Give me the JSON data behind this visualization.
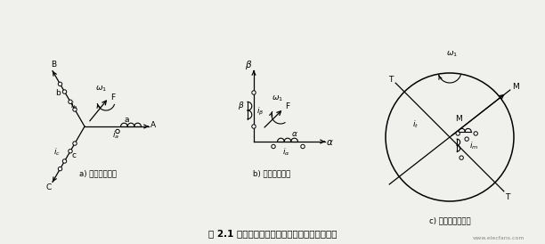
{
  "bg_color": "#f0f0ec",
  "title": "图 2.1 等效的交流电机绕组和直流电机物理模型",
  "label_a": "a) 三相交流绕组",
  "label_b": "b) 两相交流绕组",
  "label_c": "c) 旋转的直流绕组",
  "watermark": "www.elecfans.com",
  "panel_a_ox": 0.95,
  "panel_a_oy": 1.32,
  "panel_b_ox": 2.85,
  "panel_b_oy": 1.15,
  "panel_c_ox": 5.05,
  "panel_c_oy": 1.2,
  "panel_c_r": 0.72
}
